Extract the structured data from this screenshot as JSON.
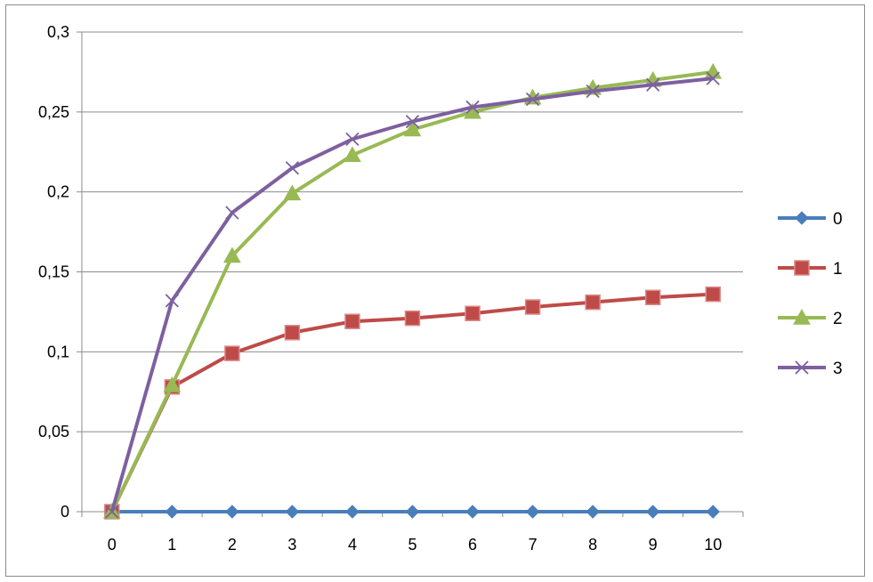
{
  "chart_data": {
    "type": "line",
    "x": [
      0,
      1,
      2,
      3,
      4,
      5,
      6,
      7,
      8,
      9,
      10
    ],
    "ylim": [
      0,
      0.3
    ],
    "yticks": [
      0,
      0.05,
      0.1,
      0.15,
      0.2,
      0.25,
      0.3
    ],
    "ytick_labels": [
      "0",
      "0,05",
      "0,1",
      "0,15",
      "0,2",
      "0,25",
      "0,3"
    ],
    "xtick_labels": [
      "0",
      "1",
      "2",
      "3",
      "4",
      "5",
      "6",
      "7",
      "8",
      "9",
      "10"
    ],
    "grid": "horizontal",
    "legend_position": "right",
    "series": [
      {
        "name": "0",
        "color": "#4a7ebb",
        "marker": "diamond",
        "values": [
          0,
          0,
          0,
          0,
          0,
          0,
          0,
          0,
          0,
          0,
          0
        ]
      },
      {
        "name": "1",
        "color": "#be4b48",
        "marker": "square",
        "values": [
          0,
          0.078,
          0.099,
          0.112,
          0.119,
          0.121,
          0.124,
          0.128,
          0.131,
          0.134,
          0.136
        ]
      },
      {
        "name": "2",
        "color": "#98b954",
        "marker": "triangle",
        "values": [
          0,
          0.079,
          0.16,
          0.199,
          0.223,
          0.239,
          0.25,
          0.259,
          0.265,
          0.27,
          0.275
        ]
      },
      {
        "name": "3",
        "color": "#7d60a0",
        "marker": "x",
        "values": [
          0,
          0.132,
          0.187,
          0.215,
          0.233,
          0.244,
          0.253,
          0.258,
          0.263,
          0.267,
          0.271
        ]
      }
    ]
  }
}
